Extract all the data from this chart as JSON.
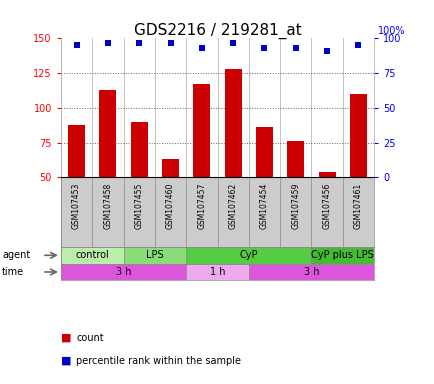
{
  "title": "GDS2216 / 219281_at",
  "samples": [
    "GSM107453",
    "GSM107458",
    "GSM107455",
    "GSM107460",
    "GSM107457",
    "GSM107462",
    "GSM107454",
    "GSM107459",
    "GSM107456",
    "GSM107461"
  ],
  "counts": [
    88,
    113,
    90,
    63,
    117,
    128,
    86,
    76,
    54,
    110
  ],
  "percentile_ranks": [
    95,
    97,
    97,
    97,
    93,
    97,
    93,
    93,
    91,
    95
  ],
  "ylim_left": [
    50,
    150
  ],
  "ylim_right": [
    0,
    100
  ],
  "yticks_left": [
    50,
    75,
    100,
    125,
    150
  ],
  "yticks_right": [
    0,
    25,
    50,
    75,
    100
  ],
  "bar_color": "#cc0000",
  "dot_color": "#0000cc",
  "sample_bg_color": "#cccccc",
  "agent_groups": [
    {
      "label": "control",
      "start": 0,
      "end": 2,
      "color": "#bbeeaa"
    },
    {
      "label": "LPS",
      "start": 2,
      "end": 4,
      "color": "#88dd77"
    },
    {
      "label": "CyP",
      "start": 4,
      "end": 8,
      "color": "#55cc44"
    },
    {
      "label": "CyP plus LPS",
      "start": 8,
      "end": 10,
      "color": "#44bb33"
    }
  ],
  "time_groups": [
    {
      "label": "3 h",
      "start": 0,
      "end": 4,
      "color": "#dd55dd"
    },
    {
      "label": "1 h",
      "start": 4,
      "end": 6,
      "color": "#eeaaee"
    },
    {
      "label": "3 h",
      "start": 6,
      "end": 10,
      "color": "#dd55dd"
    }
  ],
  "background_color": "#ffffff",
  "title_fontsize": 11,
  "bar_fontsize": 5.5,
  "agent_fontsize": 7,
  "time_fontsize": 7,
  "tick_fontsize": 7,
  "legend_fontsize": 7,
  "dotted_lines": [
    75,
    100,
    125
  ]
}
